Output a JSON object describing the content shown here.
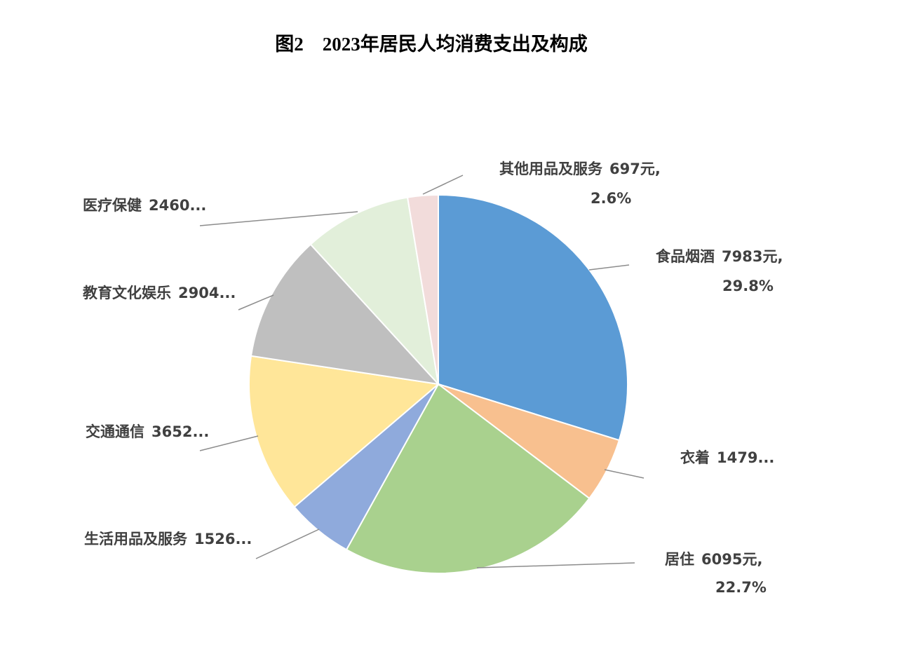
{
  "chart_data": {
    "type": "pie",
    "title": "图2    2023年居民人均消费支出及构成",
    "categories": [
      "食品烟酒",
      "衣着",
      "居住",
      "生活用品及服务",
      "交通通信",
      "教育文化娱乐",
      "医疗保健",
      "其他用品及服务"
    ],
    "values": [
      7983,
      1479,
      6095,
      1526,
      3652,
      2904,
      2460,
      697
    ],
    "value_labels": [
      "7983元,",
      "1479...",
      "6095元,",
      "1526...",
      "3652...",
      "2904...",
      "2460...",
      "697元,"
    ],
    "percent_labels": [
      "29.8%",
      null,
      "22.7%",
      null,
      null,
      null,
      null,
      "2.6%"
    ],
    "colors": [
      "#5b9bd5",
      "#f8c08f",
      "#a9d18e",
      "#8faadc",
      "#ffe699",
      "#bfbfbf",
      "#e2efda",
      "#f2dcdb"
    ]
  }
}
